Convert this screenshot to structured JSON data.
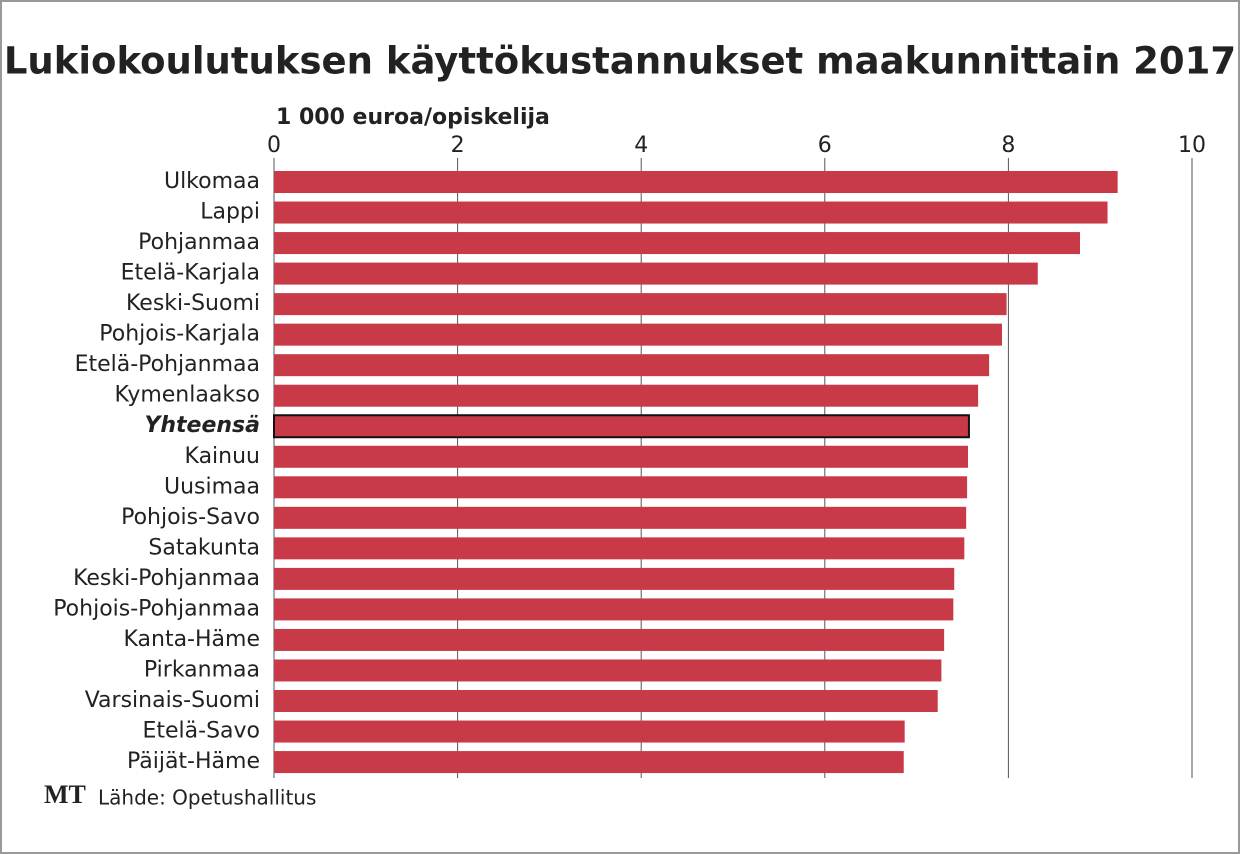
{
  "chart_data": {
    "type": "hbar",
    "title": "Lukiokoulutuksen käyttökustannukset maakunnittain 2017",
    "x_label": "1 000 euroa/opiskelija",
    "source": "Lähde: Opetushallitus",
    "logo": "MT",
    "categories": [
      "Ulkomaa",
      "Lappi",
      "Pohjanmaa",
      "Etelä-Karjala",
      "Keski-Suomi",
      "Pohjois-Karjala",
      "Etelä-Pohjanmaa",
      "Kymenlaakso",
      "Yhteensä",
      "Kainuu",
      "Uusimaa",
      "Pohjois-Savo",
      "Satakunta",
      "Keski-Pohjanmaa",
      "Pohjois-Pohjanmaa",
      "Kanta-Häme",
      "Pirkanmaa",
      "Varsinais-Suomi",
      "Etelä-Savo",
      "Päijät-Häme"
    ],
    "values": [
      9.19,
      9.08,
      8.78,
      8.32,
      7.98,
      7.93,
      7.79,
      7.67,
      7.57,
      7.56,
      7.55,
      7.54,
      7.52,
      7.41,
      7.4,
      7.3,
      7.27,
      7.23,
      6.87,
      6.86
    ],
    "color": "#c83a47",
    "highlight_index": 8,
    "xlim": [
      0,
      10
    ],
    "xticks": [
      0,
      2,
      4,
      6,
      8,
      10
    ],
    "grid": true
  }
}
